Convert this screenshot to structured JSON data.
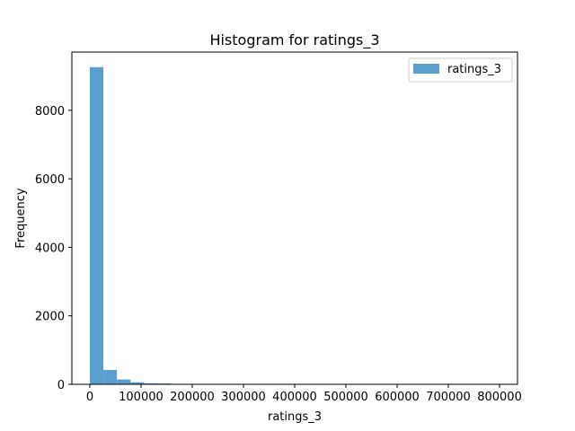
{
  "chart_data": {
    "type": "bar",
    "title": "Histogram for ratings_3",
    "xlabel": "ratings_3",
    "ylabel": "Frequency",
    "xlim": [
      -35000,
      835000
    ],
    "ylim": [
      0,
      9700
    ],
    "x_ticks": [
      0,
      100000,
      200000,
      300000,
      400000,
      500000,
      600000,
      700000,
      800000
    ],
    "x_tick_labels": [
      "0",
      "100000",
      "200000",
      "300000",
      "400000",
      "500000",
      "600000",
      "700000",
      "800000"
    ],
    "y_ticks": [
      0,
      2000,
      4000,
      6000,
      8000
    ],
    "y_tick_labels": [
      "0",
      "2000",
      "4000",
      "6000",
      "8000"
    ],
    "legend": {
      "position": "top-right",
      "entries": [
        "ratings_3"
      ]
    },
    "grid": false,
    "bar_color": "#5b9fcf",
    "series": [
      {
        "name": "ratings_3",
        "bin_edges": [
          0,
          26500,
          53000,
          79500,
          106000,
          132500,
          159000,
          185500,
          212000,
          238500,
          265000,
          291500,
          318000,
          344500,
          371000,
          397500,
          424000,
          450500,
          477000,
          503500,
          530000,
          556500,
          583000,
          609500,
          636000,
          662500,
          689000,
          715500,
          742000,
          768500,
          795000
        ],
        "counts": [
          9260,
          420,
          140,
          60,
          30,
          25,
          10,
          6,
          5,
          4,
          3,
          2,
          2,
          2,
          1,
          1,
          1,
          1,
          1,
          1,
          1,
          1,
          1,
          1,
          1,
          1,
          1,
          1,
          1,
          1
        ]
      }
    ]
  }
}
